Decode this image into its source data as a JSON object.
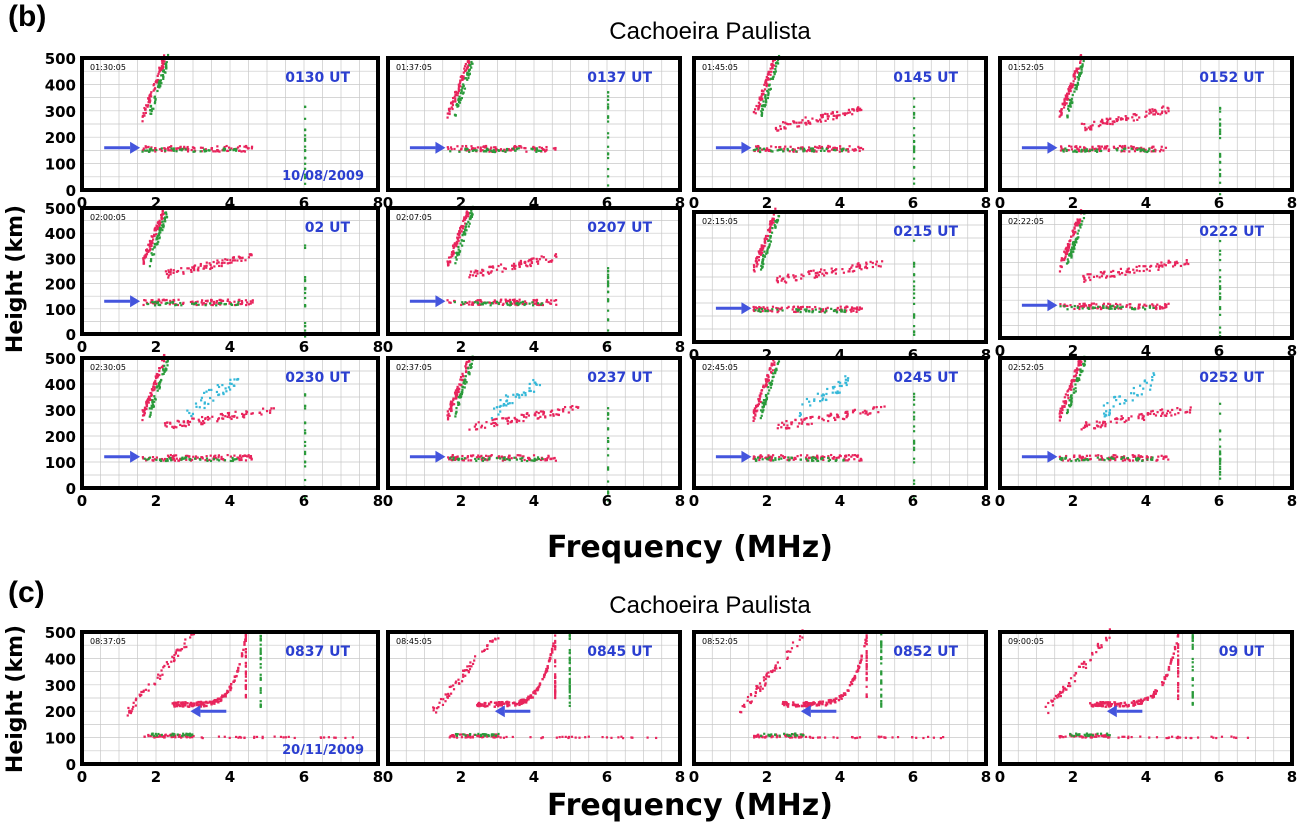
{
  "figure_b": {
    "panel_label": "(b)",
    "title": "Cachoeira Paulista",
    "xlabel": "Frequency (MHz)",
    "ylabel": "Height (km)",
    "date": "10/08/2009"
  },
  "figure_c": {
    "panel_label": "(c)",
    "title": "Cachoeira Paulista",
    "xlabel": "Frequency (MHz)",
    "ylabel": "Height (km)",
    "date": "20/11/2009"
  },
  "colors": {
    "frame": "#000000",
    "grid": "#c8c8c8",
    "ut_label": "#2b3fd0",
    "arrow": "#4455dd",
    "ordinary_trace": "#e8245c",
    "extraordinary_trace": "#2a9a3a",
    "spread_trace": "#36b8d8"
  },
  "chart_data": [
    {
      "type": "scatter",
      "group": "b",
      "ut_label": "0130 UT",
      "timestamp": "01:30:05",
      "xlim": [
        0,
        8
      ],
      "ylim": [
        0,
        500
      ],
      "x_ticks": [
        "0",
        "2",
        "4",
        "6",
        "8"
      ],
      "y_ticks": [
        "0",
        "100",
        "200",
        "300",
        "400",
        "500"
      ]
    },
    {
      "type": "scatter",
      "group": "b",
      "ut_label": "0137 UT",
      "timestamp": "01:37:05",
      "xlim": [
        0,
        8
      ],
      "ylim": [
        0,
        500
      ],
      "x_ticks": [
        "0",
        "2",
        "4",
        "6",
        "8"
      ],
      "y_ticks": [
        "0",
        "100",
        "200",
        "300",
        "400",
        "500"
      ]
    },
    {
      "type": "scatter",
      "group": "b",
      "ut_label": "0145 UT",
      "timestamp": "01:45:05",
      "xlim": [
        0,
        8
      ],
      "ylim": [
        0,
        500
      ],
      "x_ticks": [
        "0",
        "2",
        "4",
        "6",
        "8"
      ],
      "y_ticks": [
        "0",
        "100",
        "200",
        "300",
        "400",
        "500"
      ]
    },
    {
      "type": "scatter",
      "group": "b",
      "ut_label": "0152 UT",
      "timestamp": "01:52:05",
      "xlim": [
        0,
        8
      ],
      "ylim": [
        0,
        500
      ],
      "x_ticks": [
        "0",
        "2",
        "4",
        "6",
        "8"
      ],
      "y_ticks": [
        "0",
        "100",
        "200",
        "300",
        "400",
        "500"
      ]
    },
    {
      "type": "scatter",
      "group": "b",
      "ut_label": "02 UT",
      "timestamp": "02:00:05",
      "xlim": [
        0,
        8
      ],
      "ylim": [
        0,
        500
      ],
      "x_ticks": [
        "0",
        "2",
        "4",
        "6",
        "8"
      ],
      "y_ticks": [
        "0",
        "100",
        "200",
        "300",
        "400",
        "500"
      ]
    },
    {
      "type": "scatter",
      "group": "b",
      "ut_label": "0207 UT",
      "timestamp": "02:07:05",
      "xlim": [
        0,
        8
      ],
      "ylim": [
        0,
        500
      ],
      "x_ticks": [
        "0",
        "2",
        "4",
        "6",
        "8"
      ],
      "y_ticks": [
        "0",
        "100",
        "200",
        "300",
        "400",
        "500"
      ]
    },
    {
      "type": "scatter",
      "group": "b",
      "ut_label": "0215 UT",
      "timestamp": "02:15:05",
      "xlim": [
        0,
        8
      ],
      "ylim": [
        0,
        500
      ],
      "x_ticks": [
        "0",
        "2",
        "4",
        "6",
        "8"
      ],
      "y_ticks": [
        "0",
        "100",
        "200",
        "300",
        "400",
        "500"
      ]
    },
    {
      "type": "scatter",
      "group": "b",
      "ut_label": "0222 UT",
      "timestamp": "02:22:05",
      "xlim": [
        0,
        8
      ],
      "ylim": [
        0,
        500
      ],
      "x_ticks": [
        "0",
        "2",
        "4",
        "6",
        "8"
      ],
      "y_ticks": [
        "0",
        "100",
        "200",
        "300",
        "400",
        "500"
      ]
    },
    {
      "type": "scatter",
      "group": "b",
      "ut_label": "0230 UT",
      "timestamp": "02:30:05",
      "xlim": [
        0,
        8
      ],
      "ylim": [
        0,
        500
      ],
      "x_ticks": [
        "0",
        "2",
        "4",
        "6",
        "8"
      ],
      "y_ticks": [
        "0",
        "100",
        "200",
        "300",
        "400",
        "500"
      ]
    },
    {
      "type": "scatter",
      "group": "b",
      "ut_label": "0237 UT",
      "timestamp": "02:37:05",
      "xlim": [
        0,
        8
      ],
      "ylim": [
        0,
        500
      ],
      "x_ticks": [
        "0",
        "2",
        "4",
        "6",
        "8"
      ],
      "y_ticks": [
        "0",
        "100",
        "200",
        "300",
        "400",
        "500"
      ]
    },
    {
      "type": "scatter",
      "group": "b",
      "ut_label": "0245 UT",
      "timestamp": "02:45:05",
      "xlim": [
        0,
        8
      ],
      "ylim": [
        0,
        500
      ],
      "x_ticks": [
        "0",
        "2",
        "4",
        "6",
        "8"
      ],
      "y_ticks": [
        "0",
        "100",
        "200",
        "300",
        "400",
        "500"
      ]
    },
    {
      "type": "scatter",
      "group": "b",
      "ut_label": "0252 UT",
      "timestamp": "02:52:05",
      "xlim": [
        0,
        8
      ],
      "ylim": [
        0,
        500
      ],
      "x_ticks": [
        "0",
        "2",
        "4",
        "6",
        "8"
      ],
      "y_ticks": [
        "0",
        "100",
        "200",
        "300",
        "400",
        "500"
      ]
    },
    {
      "type": "scatter",
      "group": "c",
      "ut_label": "0837 UT",
      "timestamp": "08:37:05",
      "xlim": [
        0,
        8
      ],
      "ylim": [
        0,
        500
      ],
      "x_ticks": [
        "0",
        "2",
        "4",
        "6",
        "8"
      ],
      "y_ticks": [
        "0",
        "100",
        "200",
        "300",
        "400",
        "500"
      ]
    },
    {
      "type": "scatter",
      "group": "c",
      "ut_label": "0845 UT",
      "timestamp": "08:45:05",
      "xlim": [
        0,
        8
      ],
      "ylim": [
        0,
        500
      ],
      "x_ticks": [
        "0",
        "2",
        "4",
        "6",
        "8"
      ],
      "y_ticks": [
        "0",
        "100",
        "200",
        "300",
        "400",
        "500"
      ]
    },
    {
      "type": "scatter",
      "group": "c",
      "ut_label": "0852 UT",
      "timestamp": "08:52:05",
      "xlim": [
        0,
        8
      ],
      "ylim": [
        0,
        500
      ],
      "x_ticks": [
        "0",
        "2",
        "4",
        "6",
        "8"
      ],
      "y_ticks": [
        "0",
        "100",
        "200",
        "300",
        "400",
        "500"
      ]
    },
    {
      "type": "scatter",
      "group": "c",
      "ut_label": "09 UT",
      "timestamp": "09:00:05",
      "xlim": [
        0,
        8
      ],
      "ylim": [
        0,
        500
      ],
      "x_ticks": [
        "0",
        "2",
        "4",
        "6",
        "8"
      ],
      "y_ticks": [
        "0",
        "100",
        "200",
        "300",
        "400",
        "500"
      ]
    }
  ]
}
